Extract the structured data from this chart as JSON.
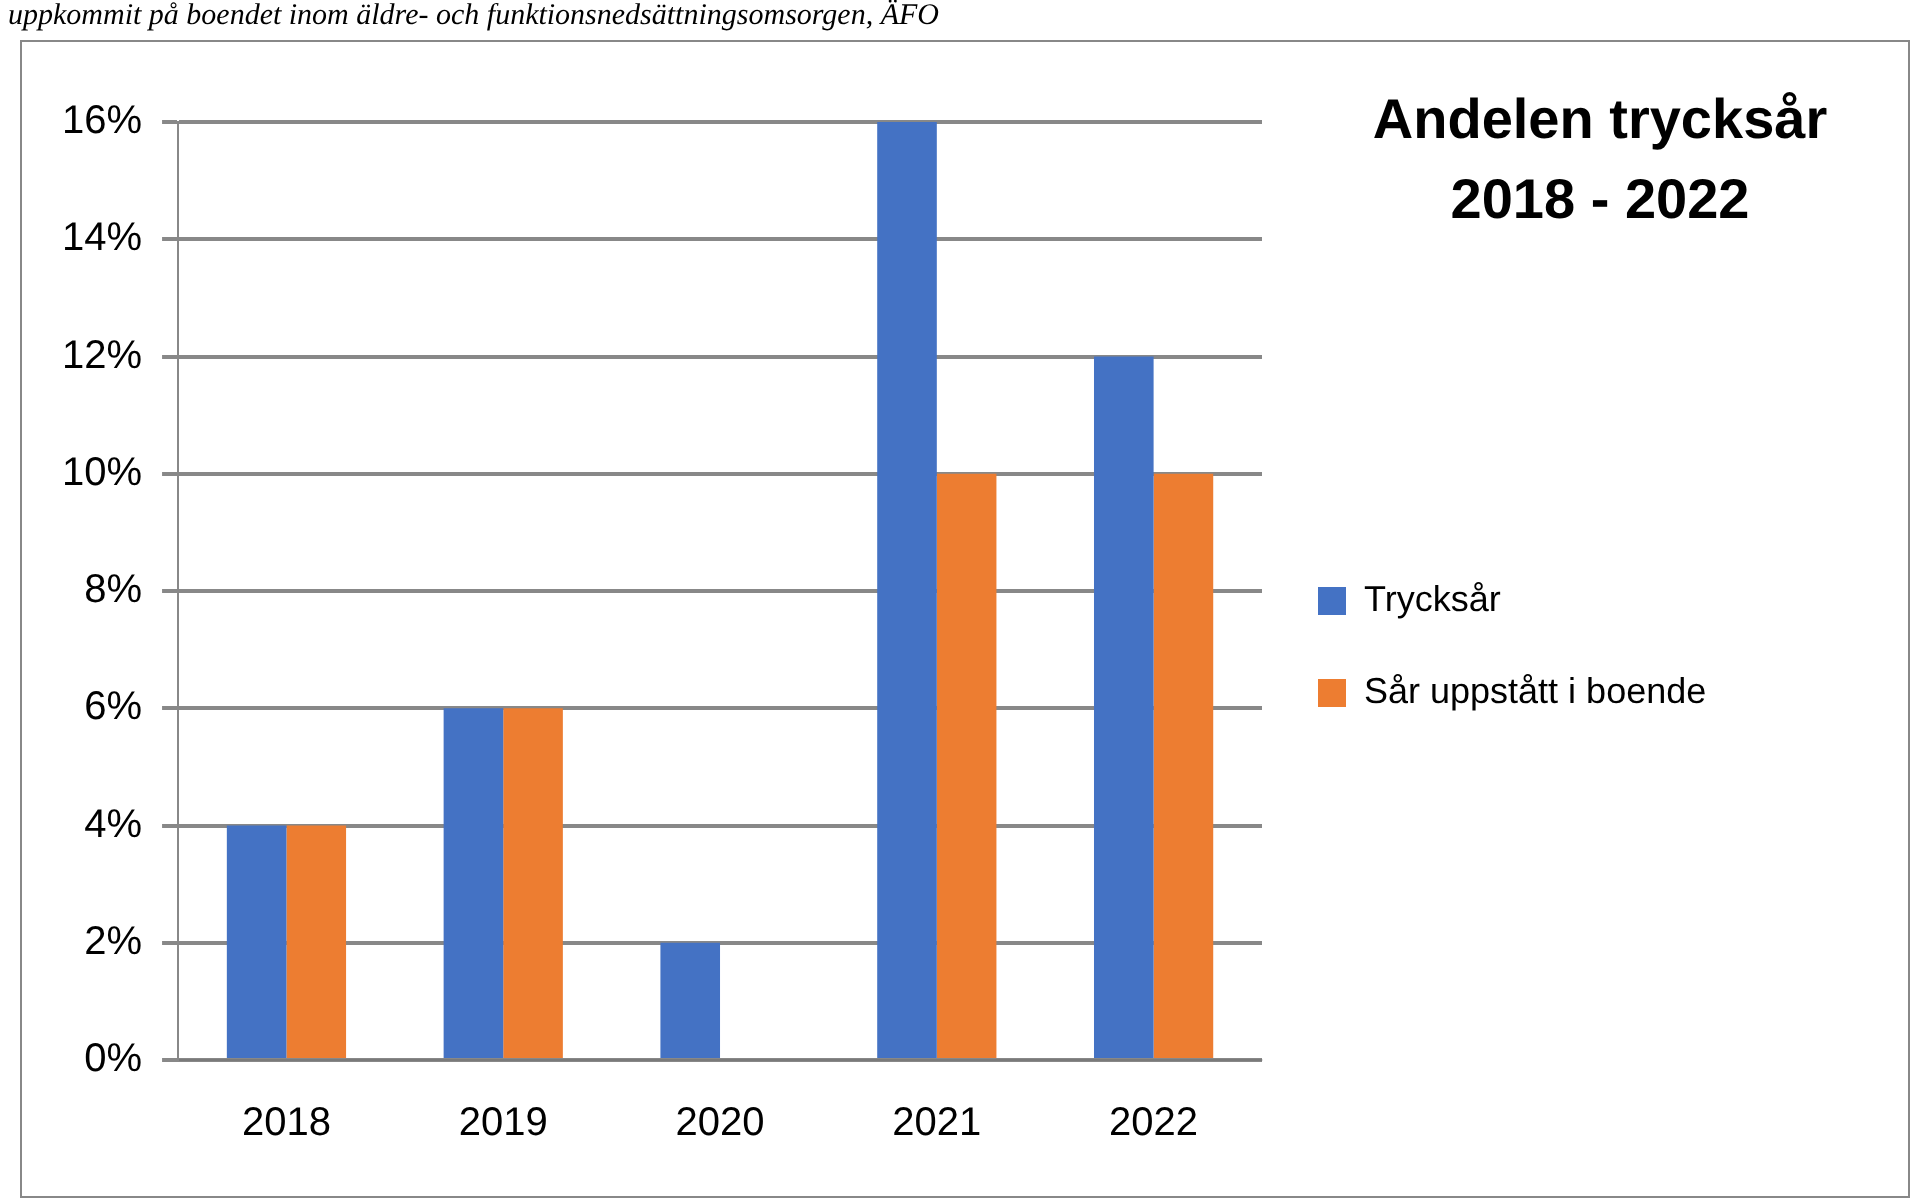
{
  "chart_data": {
    "type": "bar",
    "title": "Andelen trycksår 2018 - 2022",
    "annotations": [
      "uppkommit på boendet inom äldre- och funktionsnedsättningsomsorgen, ÄFO"
    ],
    "categories": [
      "2018",
      "2019",
      "2020",
      "2021",
      "2022"
    ],
    "series": [
      {
        "name": "Trycksår",
        "color": "#4472c4",
        "values": [
          4,
          6,
          2,
          16,
          12
        ]
      },
      {
        "name": "Sår uppstått i boende",
        "color": "#ed7d31",
        "values": [
          4,
          6,
          0,
          10,
          10
        ]
      }
    ],
    "ylim": [
      0,
      16
    ],
    "yticks": [
      {
        "value": 0,
        "label": "0%"
      },
      {
        "value": 2,
        "label": "2%"
      },
      {
        "value": 4,
        "label": "4%"
      },
      {
        "value": 6,
        "label": "6%"
      },
      {
        "value": 8,
        "label": "8%"
      },
      {
        "value": 10,
        "label": "10%"
      },
      {
        "value": 12,
        "label": "12%"
      },
      {
        "value": 14,
        "label": "14%"
      },
      {
        "value": 16,
        "label": "16%"
      }
    ],
    "grid": "y",
    "legend": "right"
  }
}
